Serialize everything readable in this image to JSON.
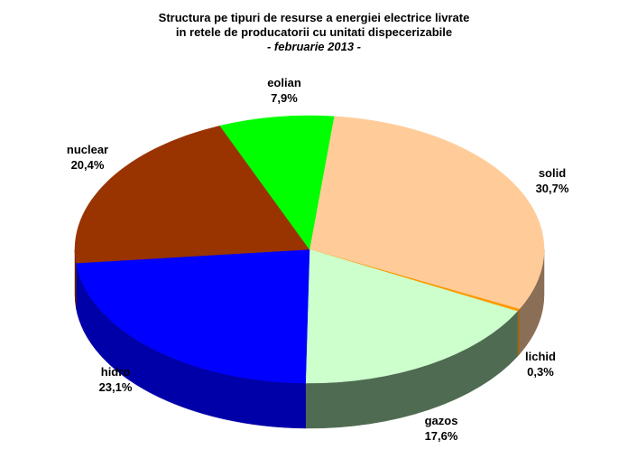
{
  "chart_data": {
    "type": "pie",
    "title": "Structura pe tipuri de resurse a energiei electrice livrate",
    "title_line2": "in retele de producatorii cu unitati dispecerizabile",
    "subtitle": "- februarie 2013 -",
    "three_d": true,
    "slices": [
      {
        "name": "solid",
        "value": 30.7,
        "label": "30,7%",
        "color": "#FFCC99",
        "side_color": "#8A6E56"
      },
      {
        "name": "lichid",
        "value": 0.3,
        "label": "0,3%",
        "color": "#FF9900",
        "side_color": "#9A6A1E"
      },
      {
        "name": "gazos",
        "value": 17.6,
        "label": "17,6%",
        "color": "#CCFFCC",
        "side_color": "#4F6B52"
      },
      {
        "name": "hidro",
        "value": 23.1,
        "label": "23,1%",
        "color": "#0000FF",
        "side_color": "#0000A8"
      },
      {
        "name": "nuclear",
        "value": 20.4,
        "label": "20,4%",
        "color": "#993300",
        "side_color": "#5E2000"
      },
      {
        "name": "eolian",
        "value": 7.9,
        "label": "7,9%",
        "color": "#00FF00",
        "side_color": "#009900"
      }
    ]
  }
}
